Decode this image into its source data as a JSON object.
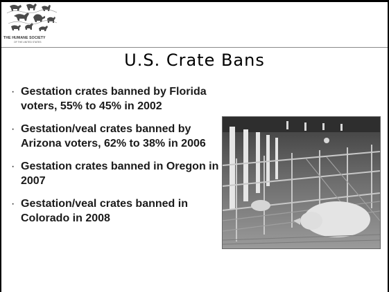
{
  "logo": {
    "name": "THE HUMANE SOCIETY",
    "sub": "OF THE UNITED STATES"
  },
  "title": "U.S. Crate Bans",
  "bullets": [
    {
      "marker": "·",
      "text": "Gestation crates banned by Florida voters, 55% to 45% in 2002"
    },
    {
      "marker": "·",
      "text": "Gestation/veal crates banned by Arizona voters, 62% to 38% in 2006"
    },
    {
      "marker": "·",
      "text": "Gestation crates banned in Oregon in 2007"
    },
    {
      "marker": "·",
      "text": "Gestation/veal crates banned in Colorado in 2008"
    }
  ]
}
